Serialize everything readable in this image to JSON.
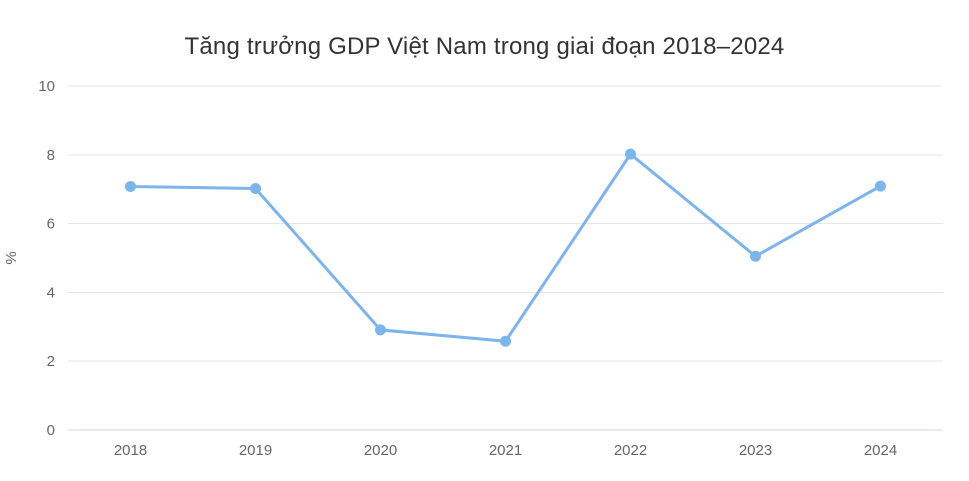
{
  "chart_data": {
    "type": "line",
    "title": "Tăng trưởng GDP Việt Nam trong giai đoạn 2018–2024",
    "categories": [
      "2018",
      "2019",
      "2020",
      "2021",
      "2022",
      "2023",
      "2024"
    ],
    "values": [
      7.08,
      7.02,
      2.91,
      2.58,
      8.02,
      5.05,
      7.09
    ],
    "xlabel": "",
    "ylabel": "%",
    "ylim": [
      0,
      10
    ],
    "yticks": [
      0,
      2,
      4,
      6,
      8,
      10
    ],
    "grid": true,
    "legend": "none",
    "colors": {
      "series": "#7cb5ec",
      "gridline": "#e6e6e6",
      "axis_line": "#ccd6eb",
      "tick_label": "#666666",
      "title": "#333333",
      "background": "#ffffff"
    }
  }
}
